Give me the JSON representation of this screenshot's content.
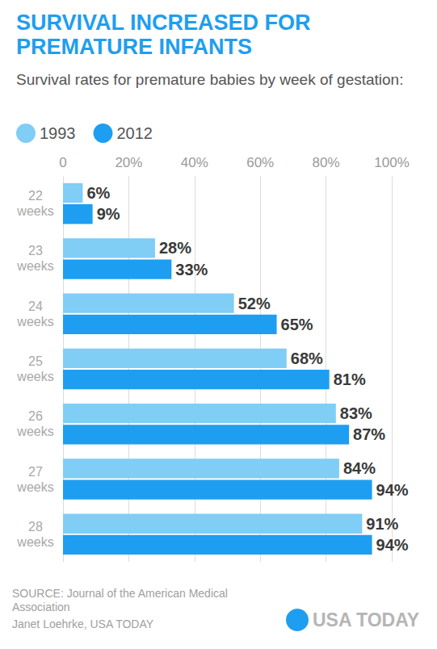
{
  "chart_data": {
    "type": "bar",
    "title": "SURVIVAL INCREASED FOR PREMATURE INFANTS",
    "subtitle": "Survival rates for premature babies by week of gestation:",
    "categories": [
      "22 weeks",
      "23 weeks",
      "24 weeks",
      "25 weeks",
      "26 weeks",
      "27 weeks",
      "28 weeks"
    ],
    "series": [
      {
        "name": "1993",
        "color": "#80cdf6",
        "values": [
          6,
          28,
          52,
          68,
          83,
          84,
          91
        ],
        "value_labels": [
          "6%",
          "28%",
          "52%",
          "68%",
          "83%",
          "84%",
          "91%"
        ]
      },
      {
        "name": "2012",
        "color": "#1e9ef0",
        "values": [
          9,
          33,
          65,
          81,
          87,
          94,
          94
        ],
        "value_labels": [
          "9%",
          "33%",
          "65%",
          "81%",
          "87%",
          "94%",
          "94%"
        ]
      }
    ],
    "xlim": [
      0,
      100
    ],
    "xticks": [
      0,
      {
        "value": 20,
        "label": "20%"
      },
      {
        "value": 40,
        "label": "40%"
      },
      {
        "value": 60,
        "label": "60%"
      },
      {
        "value": 80,
        "label": "80%"
      },
      {
        "value": 100,
        "label": "100%"
      }
    ],
    "orientation": "horizontal",
    "grid": true,
    "legend": "top-left",
    "data_labels": true,
    "annotations": [
      "SOURCE: Journal of the American Medical Association",
      "Janet Loehrke, USA TODAY",
      "USA TODAY"
    ]
  }
}
